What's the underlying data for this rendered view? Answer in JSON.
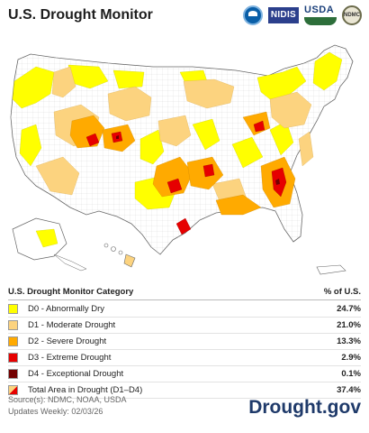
{
  "header": {
    "title": "U.S. Drought Monitor",
    "logos": [
      {
        "icon": "noaa-logo-icon"
      },
      {
        "icon": "nidis-logo-icon",
        "text": "NIDIS"
      },
      {
        "icon": "usda-logo-icon",
        "text": "USDA"
      },
      {
        "icon": "ndmc-logo-icon",
        "text": "NDMC"
      }
    ]
  },
  "colors": {
    "d0": "#ffff00",
    "d1": "#fcd37f",
    "d2": "#ffaa00",
    "d3": "#e60000",
    "d4": "#730000",
    "none": "#ffffff",
    "borders": "#7a7a7a"
  },
  "legend": {
    "heading": "U.S. Drought Monitor Category",
    "pct_heading": "% of U.S.",
    "rows": [
      {
        "label": "D0 - Abnormally Dry",
        "value": "24.7%",
        "color": "#ffff00"
      },
      {
        "label": "D1 - Moderate Drought",
        "value": "21.0%",
        "color": "#fcd37f"
      },
      {
        "label": "D2 - Severe Drought",
        "value": "13.3%",
        "color": "#ffaa00"
      },
      {
        "label": "D3 - Extreme Drought",
        "value": "2.9%",
        "color": "#e60000"
      },
      {
        "label": "D4 - Exceptional Drought",
        "value": "0.1%",
        "color": "#730000"
      },
      {
        "label": "Total Area in Drought (D1–D4)",
        "value": "37.4%"
      }
    ]
  },
  "footer": {
    "source": "Source(s): NDMC, NOAA, USDA",
    "updated": "Updates Weekly: 02/03/26",
    "brand": "Drought.gov"
  }
}
